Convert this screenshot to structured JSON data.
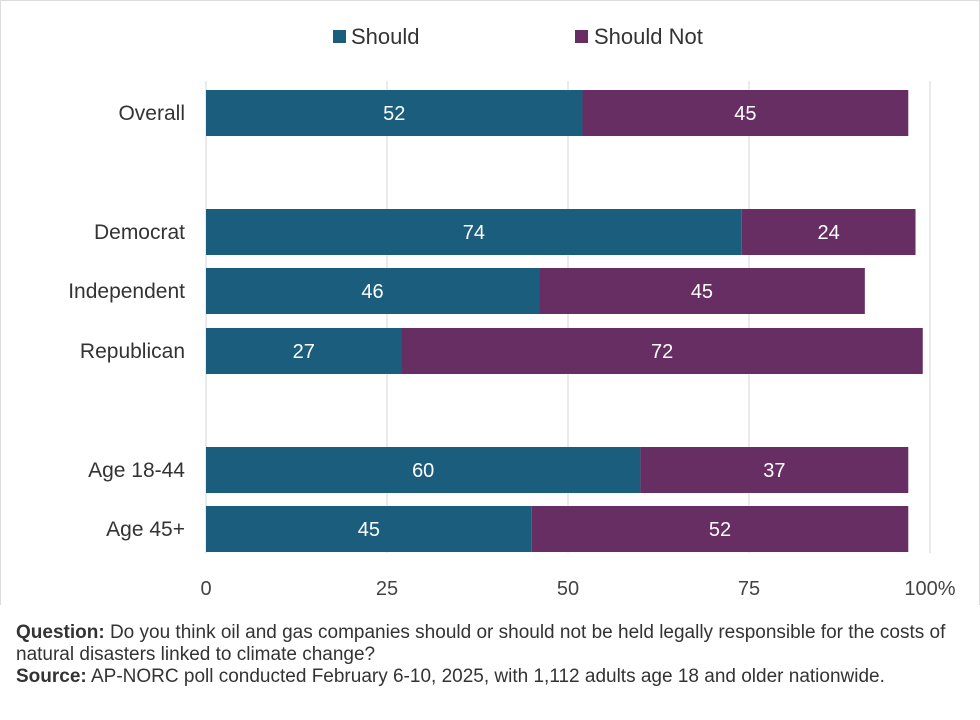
{
  "chart_data": {
    "type": "bar",
    "orientation": "horizontal",
    "stacked": true,
    "categories": [
      "Overall",
      "Democrat",
      "Independent",
      "Republican",
      "Age 18-44",
      "Age 45+"
    ],
    "series": [
      {
        "name": "Should",
        "color": "#1b5d7d",
        "values": [
          52,
          74,
          46,
          27,
          60,
          45
        ]
      },
      {
        "name": "Should Not",
        "color": "#662e63",
        "values": [
          45,
          24,
          45,
          72,
          37,
          52
        ]
      }
    ],
    "xlim": [
      0,
      100
    ],
    "x_ticks": [
      "0",
      "25",
      "50",
      "75",
      "100%"
    ],
    "legend_position": "top-center",
    "grid": "vertical"
  },
  "footer": {
    "question_label": "Question:",
    "question_text": " Do you think oil and gas companies should or should not be held legally responsible for the costs of natural disasters linked to climate change?",
    "source_label": "Source:",
    "source_text": " AP-NORC poll conducted February 6-10, 2025, with 1,112 adults age 18 and older nationwide."
  }
}
